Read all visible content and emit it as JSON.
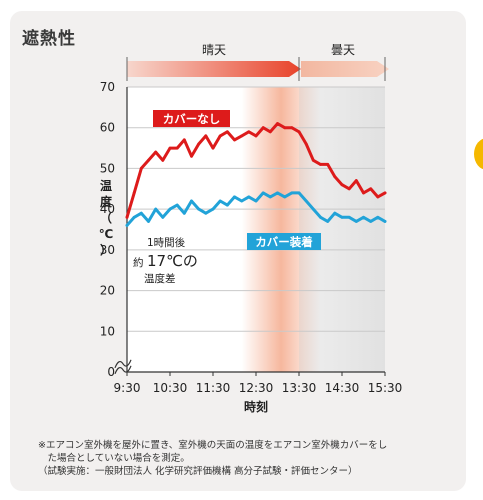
{
  "page": {
    "title": "遮熱性"
  },
  "colors": {
    "red_line": "#dd1b1b",
    "blue_line": "#22a3d8",
    "sunny_arrow": "#e8432b",
    "cloudy_arrow": "#f3a486",
    "highlight": "#f4a585",
    "accent_circle": "#f5b800"
  },
  "chart_data": {
    "type": "line",
    "title": "",
    "xlabel": "時刻",
    "ylabel": "温度（℃）",
    "ylabel_chars": [
      "温",
      "度",
      "（",
      "℃",
      "）"
    ],
    "x_ticks": [
      "9:30",
      "10:30",
      "11:30",
      "12:30",
      "13:30",
      "14:30",
      "15:30"
    ],
    "y_ticks": [
      0,
      10,
      20,
      30,
      40,
      50,
      60,
      70
    ],
    "ylim": [
      0,
      70
    ],
    "xlim": [
      "9:30",
      "15:30"
    ],
    "axis_break": true,
    "grid": true,
    "periods": [
      {
        "label": "晴天",
        "from": "9:30",
        "to": "13:30"
      },
      {
        "label": "曇天",
        "from": "13:30",
        "to": "15:30"
      }
    ],
    "series": [
      {
        "name": "カバーなし",
        "x": [
          "9:30",
          "9:40",
          "9:50",
          "10:00",
          "10:10",
          "10:20",
          "10:30",
          "10:40",
          "10:50",
          "11:00",
          "11:10",
          "11:20",
          "11:30",
          "11:40",
          "11:50",
          "12:00",
          "12:10",
          "12:20",
          "12:30",
          "12:40",
          "12:50",
          "13:00",
          "13:10",
          "13:20",
          "13:30",
          "13:40",
          "13:50",
          "14:00",
          "14:10",
          "14:20",
          "14:30",
          "14:40",
          "14:50",
          "15:00",
          "15:10",
          "15:20",
          "15:30"
        ],
        "values": [
          38,
          44,
          50,
          52,
          54,
          52,
          55,
          55,
          57,
          53,
          56,
          58,
          55,
          58,
          59,
          57,
          58,
          59,
          58,
          60,
          59,
          61,
          60,
          60,
          59,
          56,
          52,
          51,
          51,
          48,
          46,
          45,
          47,
          44,
          45,
          43,
          44
        ]
      },
      {
        "name": "カバー装着",
        "x": [
          "9:30",
          "9:40",
          "9:50",
          "10:00",
          "10:10",
          "10:20",
          "10:30",
          "10:40",
          "10:50",
          "11:00",
          "11:10",
          "11:20",
          "11:30",
          "11:40",
          "11:50",
          "12:00",
          "12:10",
          "12:20",
          "12:30",
          "12:40",
          "12:50",
          "13:00",
          "13:10",
          "13:20",
          "13:30",
          "13:40",
          "13:50",
          "14:00",
          "14:10",
          "14:20",
          "14:30",
          "14:40",
          "14:50",
          "15:00",
          "15:10",
          "15:20",
          "15:30"
        ],
        "values": [
          36,
          38,
          39,
          37,
          40,
          38,
          40,
          41,
          39,
          42,
          40,
          39,
          40,
          42,
          41,
          43,
          42,
          43,
          42,
          44,
          43,
          44,
          43,
          44,
          44,
          42,
          40,
          38,
          37,
          39,
          38,
          38,
          37,
          38,
          37,
          38,
          37
        ]
      }
    ],
    "annotations": {
      "series_labels": [
        "カバーなし",
        "カバー装着"
      ],
      "diff_line1": "1時間後",
      "diff_prefix": "約",
      "diff_value": "17℃の",
      "diff_line3": "温度差"
    }
  },
  "footnotes": [
    "※エアコン室外機を屋外に置き、室外機の天面の温度をエアコン室外機カバーをし",
    "　た場合としていない場合を測定。",
    "（試験実施：一般財団法人 化学研究評価機構 高分子試験・評価センター）"
  ]
}
